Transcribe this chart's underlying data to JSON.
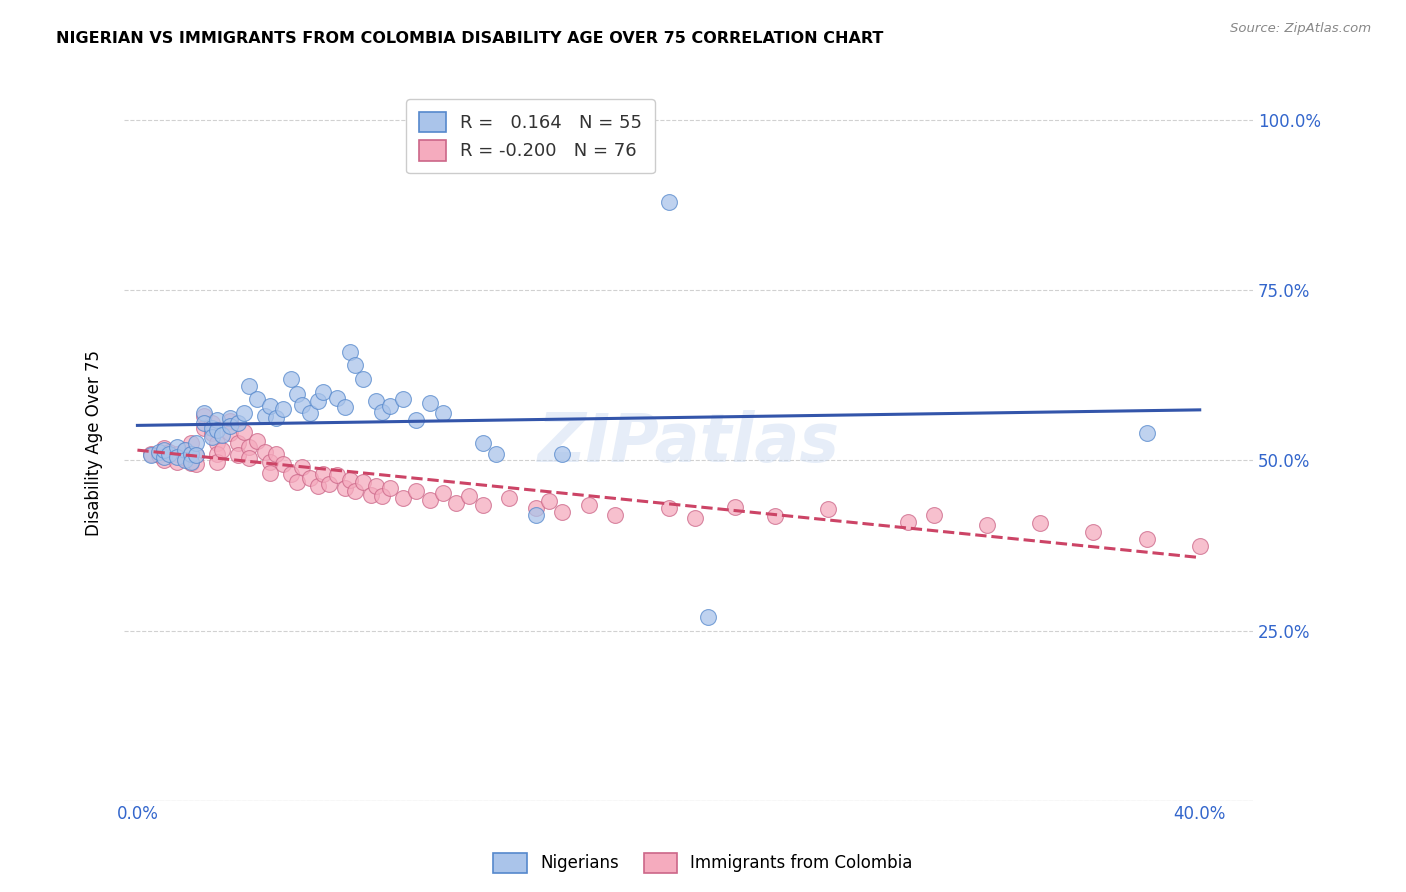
{
  "title": "NIGERIAN VS IMMIGRANTS FROM COLOMBIA DISABILITY AGE OVER 75 CORRELATION CHART",
  "source": "Source: ZipAtlas.com",
  "ylabel": "Disability Age Over 75",
  "xlabel_ticks_pos": [
    0.0,
    0.4
  ],
  "xlabel_ticks_labels": [
    "0.0%",
    "40.0%"
  ],
  "ylabel_ticks_pos": [
    0.0,
    0.25,
    0.5,
    0.75,
    1.0
  ],
  "ylabel_ticks_labels": [
    "",
    "25.0%",
    "50.0%",
    "75.0%",
    "100.0%"
  ],
  "xlim": [
    -0.005,
    0.42
  ],
  "ylim": [
    0.0,
    1.05
  ],
  "blue_R": 0.164,
  "blue_N": 55,
  "pink_R": -0.2,
  "pink_N": 76,
  "legend_labels": [
    "Nigerians",
    "Immigrants from Colombia"
  ],
  "blue_color": "#aac4ea",
  "pink_color": "#f5abbe",
  "blue_edge_color": "#5588cc",
  "pink_edge_color": "#cc6688",
  "blue_line_color": "#3355aa",
  "pink_line_color": "#cc4466",
  "watermark": "ZIPatlas",
  "blue_scatter": [
    [
      0.005,
      0.508
    ],
    [
      0.008,
      0.512
    ],
    [
      0.01,
      0.505
    ],
    [
      0.01,
      0.515
    ],
    [
      0.012,
      0.51
    ],
    [
      0.015,
      0.52
    ],
    [
      0.015,
      0.505
    ],
    [
      0.018,
      0.515
    ],
    [
      0.018,
      0.5
    ],
    [
      0.02,
      0.51
    ],
    [
      0.02,
      0.498
    ],
    [
      0.022,
      0.525
    ],
    [
      0.022,
      0.508
    ],
    [
      0.025,
      0.57
    ],
    [
      0.025,
      0.555
    ],
    [
      0.028,
      0.548
    ],
    [
      0.028,
      0.535
    ],
    [
      0.03,
      0.56
    ],
    [
      0.03,
      0.545
    ],
    [
      0.032,
      0.538
    ],
    [
      0.035,
      0.562
    ],
    [
      0.035,
      0.55
    ],
    [
      0.038,
      0.555
    ],
    [
      0.04,
      0.57
    ],
    [
      0.042,
      0.61
    ],
    [
      0.045,
      0.59
    ],
    [
      0.048,
      0.565
    ],
    [
      0.05,
      0.58
    ],
    [
      0.052,
      0.562
    ],
    [
      0.055,
      0.575
    ],
    [
      0.058,
      0.62
    ],
    [
      0.06,
      0.598
    ],
    [
      0.062,
      0.582
    ],
    [
      0.065,
      0.57
    ],
    [
      0.068,
      0.588
    ],
    [
      0.07,
      0.6
    ],
    [
      0.075,
      0.592
    ],
    [
      0.078,
      0.578
    ],
    [
      0.08,
      0.66
    ],
    [
      0.082,
      0.64
    ],
    [
      0.085,
      0.62
    ],
    [
      0.09,
      0.588
    ],
    [
      0.092,
      0.572
    ],
    [
      0.095,
      0.58
    ],
    [
      0.1,
      0.59
    ],
    [
      0.105,
      0.56
    ],
    [
      0.11,
      0.585
    ],
    [
      0.115,
      0.57
    ],
    [
      0.13,
      0.525
    ],
    [
      0.135,
      0.51
    ],
    [
      0.15,
      0.42
    ],
    [
      0.16,
      0.51
    ],
    [
      0.2,
      0.88
    ],
    [
      0.215,
      0.27
    ],
    [
      0.38,
      0.54
    ]
  ],
  "pink_scatter": [
    [
      0.005,
      0.51
    ],
    [
      0.008,
      0.508
    ],
    [
      0.01,
      0.518
    ],
    [
      0.01,
      0.5
    ],
    [
      0.012,
      0.512
    ],
    [
      0.015,
      0.51
    ],
    [
      0.015,
      0.498
    ],
    [
      0.018,
      0.516
    ],
    [
      0.018,
      0.503
    ],
    [
      0.02,
      0.525
    ],
    [
      0.02,
      0.51
    ],
    [
      0.02,
      0.497
    ],
    [
      0.022,
      0.508
    ],
    [
      0.022,
      0.495
    ],
    [
      0.025,
      0.565
    ],
    [
      0.025,
      0.548
    ],
    [
      0.028,
      0.555
    ],
    [
      0.028,
      0.54
    ],
    [
      0.03,
      0.525
    ],
    [
      0.03,
      0.51
    ],
    [
      0.03,
      0.498
    ],
    [
      0.032,
      0.515
    ],
    [
      0.035,
      0.558
    ],
    [
      0.035,
      0.54
    ],
    [
      0.038,
      0.525
    ],
    [
      0.038,
      0.508
    ],
    [
      0.04,
      0.542
    ],
    [
      0.042,
      0.52
    ],
    [
      0.042,
      0.503
    ],
    [
      0.045,
      0.528
    ],
    [
      0.048,
      0.512
    ],
    [
      0.05,
      0.498
    ],
    [
      0.05,
      0.482
    ],
    [
      0.052,
      0.51
    ],
    [
      0.055,
      0.495
    ],
    [
      0.058,
      0.48
    ],
    [
      0.06,
      0.468
    ],
    [
      0.062,
      0.49
    ],
    [
      0.065,
      0.475
    ],
    [
      0.068,
      0.462
    ],
    [
      0.07,
      0.48
    ],
    [
      0.072,
      0.465
    ],
    [
      0.075,
      0.478
    ],
    [
      0.078,
      0.46
    ],
    [
      0.08,
      0.472
    ],
    [
      0.082,
      0.455
    ],
    [
      0.085,
      0.468
    ],
    [
      0.088,
      0.45
    ],
    [
      0.09,
      0.462
    ],
    [
      0.092,
      0.448
    ],
    [
      0.095,
      0.46
    ],
    [
      0.1,
      0.445
    ],
    [
      0.105,
      0.455
    ],
    [
      0.11,
      0.442
    ],
    [
      0.115,
      0.452
    ],
    [
      0.12,
      0.438
    ],
    [
      0.125,
      0.448
    ],
    [
      0.13,
      0.435
    ],
    [
      0.14,
      0.445
    ],
    [
      0.15,
      0.43
    ],
    [
      0.155,
      0.44
    ],
    [
      0.16,
      0.425
    ],
    [
      0.17,
      0.435
    ],
    [
      0.18,
      0.42
    ],
    [
      0.2,
      0.43
    ],
    [
      0.21,
      0.415
    ],
    [
      0.225,
      0.432
    ],
    [
      0.24,
      0.418
    ],
    [
      0.26,
      0.428
    ],
    [
      0.29,
      0.41
    ],
    [
      0.3,
      0.42
    ],
    [
      0.32,
      0.405
    ],
    [
      0.34,
      0.408
    ],
    [
      0.36,
      0.395
    ],
    [
      0.38,
      0.385
    ],
    [
      0.4,
      0.375
    ]
  ]
}
